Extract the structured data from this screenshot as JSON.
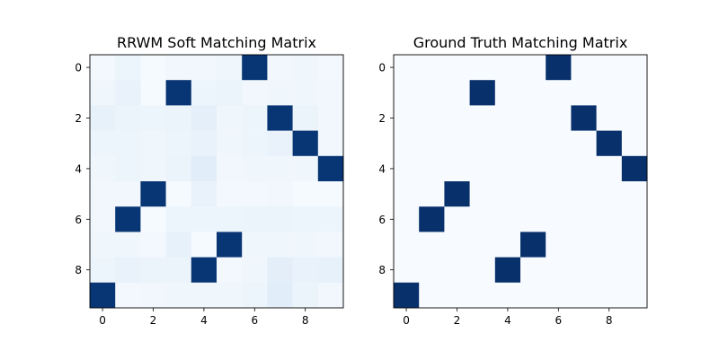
{
  "chart_data": [
    {
      "type": "heatmap",
      "title": "RRWM Soft Matching Matrix",
      "xlabel": "",
      "ylabel": "",
      "x_ticks": [
        0,
        2,
        4,
        6,
        8
      ],
      "y_ticks": [
        0,
        2,
        4,
        6,
        8
      ],
      "colormap": "Blues",
      "vmin": 0,
      "vmax": 1,
      "values": [
        [
          0.02,
          0.05,
          0.01,
          0.03,
          0.03,
          0.04,
          0.98,
          0.03,
          0.04,
          0.02
        ],
        [
          0.04,
          0.07,
          0.01,
          0.98,
          0.05,
          0.06,
          0.03,
          0.04,
          0.04,
          0.03
        ],
        [
          0.08,
          0.06,
          0.05,
          0.06,
          0.09,
          0.04,
          0.05,
          0.98,
          0.06,
          0.03
        ],
        [
          0.05,
          0.05,
          0.04,
          0.05,
          0.07,
          0.04,
          0.05,
          0.07,
          0.98,
          0.03
        ],
        [
          0.04,
          0.05,
          0.04,
          0.06,
          0.11,
          0.03,
          0.04,
          0.04,
          0.04,
          0.98
        ],
        [
          0.03,
          0.03,
          0.98,
          0.01,
          0.07,
          0.02,
          0.02,
          0.03,
          0.01,
          0.01
        ],
        [
          0.03,
          0.98,
          0.01,
          0.05,
          0.05,
          0.05,
          0.06,
          0.06,
          0.05,
          0.05
        ],
        [
          0.04,
          0.04,
          0.02,
          0.08,
          0.01,
          0.98,
          0.04,
          0.04,
          0.04,
          0.03
        ],
        [
          0.05,
          0.07,
          0.06,
          0.06,
          0.98,
          0.02,
          0.04,
          0.1,
          0.07,
          0.08
        ],
        [
          0.98,
          0.02,
          0.03,
          0.04,
          0.04,
          0.04,
          0.05,
          0.11,
          0.06,
          0.03
        ]
      ]
    },
    {
      "type": "heatmap",
      "title": "Ground Truth Matching Matrix",
      "xlabel": "",
      "ylabel": "",
      "x_ticks": [
        0,
        2,
        4,
        6,
        8
      ],
      "y_ticks": [
        0,
        2,
        4,
        6,
        8
      ],
      "colormap": "Blues",
      "vmin": 0,
      "vmax": 1,
      "values": [
        [
          0,
          0,
          0,
          0,
          0,
          0,
          1,
          0,
          0,
          0
        ],
        [
          0,
          0,
          0,
          1,
          0,
          0,
          0,
          0,
          0,
          0
        ],
        [
          0,
          0,
          0,
          0,
          0,
          0,
          0,
          1,
          0,
          0
        ],
        [
          0,
          0,
          0,
          0,
          0,
          0,
          0,
          0,
          1,
          0
        ],
        [
          0,
          0,
          0,
          0,
          0,
          0,
          0,
          0,
          0,
          1
        ],
        [
          0,
          0,
          1,
          0,
          0,
          0,
          0,
          0,
          0,
          0
        ],
        [
          0,
          1,
          0,
          0,
          0,
          0,
          0,
          0,
          0,
          0
        ],
        [
          0,
          0,
          0,
          0,
          0,
          1,
          0,
          0,
          0,
          0
        ],
        [
          0,
          0,
          0,
          0,
          1,
          0,
          0,
          0,
          0,
          0
        ],
        [
          1,
          0,
          0,
          0,
          0,
          0,
          0,
          0,
          0,
          0
        ]
      ]
    }
  ]
}
